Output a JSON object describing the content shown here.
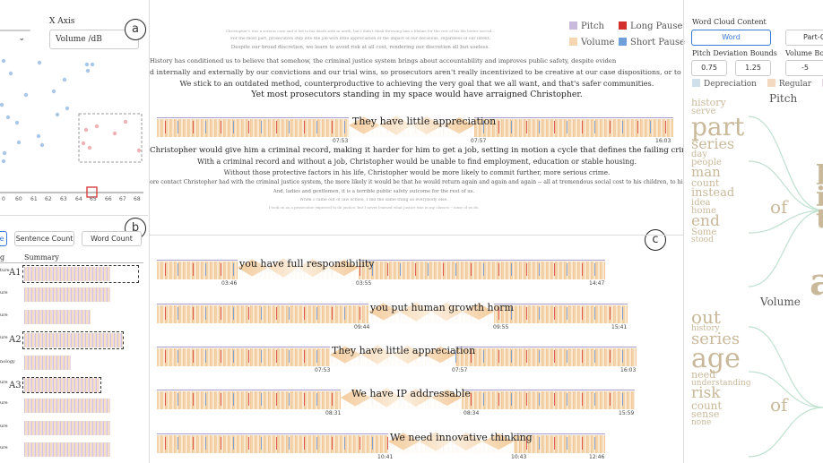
{
  "left_top": {
    "x_axis_label": "X Axis",
    "x_axis_value": "Volume /dB",
    "panel_marker": "a",
    "x_ticks": [
      "0",
      "60",
      "61",
      "62",
      "63",
      "64",
      "65",
      "66",
      "67",
      "68"
    ]
  },
  "left_bottom": {
    "panel_marker": "b",
    "buttons": [
      "e",
      "Sentence Count",
      "Word Count"
    ],
    "col1": "g",
    "col2": "Summary",
    "row_labels": [
      "ture",
      "ure",
      "ure",
      "ure",
      "nology",
      "ure",
      "ure",
      "ure",
      "ure"
    ],
    "annotations": [
      "A1",
      "A2",
      "A3"
    ]
  },
  "center": {
    "panel_marker": "c",
    "legend": [
      {
        "label": "Pitch",
        "color": "#c9b9dc"
      },
      {
        "label": "Long Pause",
        "color": "#d32f2f"
      },
      {
        "label": "Volume",
        "color": "#f5d6b0"
      },
      {
        "label": "Short Pause",
        "color": "#6e9fd8"
      }
    ],
    "transcript_faint": [
      "Christopher's was a serious case and it led to his death with in north, but I didn't think throwing him a lifeline for the rest of his life better served...",
      "For the most part, prosecutors step into the job with little appreciation of the impact of our decisions, regardless of our intent.",
      "Despite our broad discretion, we learn to avoid risk at all cost, rendering our discretion all but useless."
    ],
    "transcript_top": [
      "History has conditioned us to believe that somehow, the criminal justice system brings about accountability and improves public safety, despite evidence to the contrary.",
      "d internally and externally by our convictions and our trial wins, so prosecutors aren't really incentivized to be creative at our case dispositions, or to take risks on people we might not oth",
      "We stick to an outdated method, counterproductive to achieving the very goal that we all want, and that's safer communities."
    ],
    "transcript_emph": "Yet most prosecutors standing in my space would have arraigned Christopher.",
    "timeline_main": {
      "phrase": "They have little appreciation",
      "t_start": "07:53",
      "t_mid": "07:57",
      "t_end": "16:03"
    },
    "transcript_bottom": [
      "Christopher would give him a criminal record, making it harder for him to get a job, setting in motion a cycle that defines the failing criminal justice syste",
      "With a criminal record and without a job, Christopher would be unable to find employment, education or stable housing.",
      "Without those protective factors in his life, Christopher would be more likely to commit further, more serious crime."
    ],
    "transcript_small": [
      "ore contact Christopher had with the criminal justice system, the more likely it would be that he would return again and again and again -- all at tremendous social cost to his children, to his family and to his peo",
      "And, ladies and gentlemen, it is a terrible public safety outcome for the rest of us.",
      "When I came out of law school, I did the same thing as everybody else.",
      "I took on as a prosecutor expected to do justice, but I never learned what justice was in my classes -- none of us do."
    ],
    "timelines": [
      {
        "phrase": "you have full responsibility",
        "t_start": "03:46",
        "t_mid": "03:55",
        "t_end": "14:47"
      },
      {
        "phrase": "you put human growth horm",
        "t_start": "09:44",
        "t_mid": "09:55",
        "t_end": "15:41"
      },
      {
        "phrase": "They have little appreciation",
        "t_start": "07:53",
        "t_mid": "07:57",
        "t_end": "16:03"
      },
      {
        "phrase": "We have IP  addressable",
        "t_start": "08:31",
        "t_mid": "08:34",
        "t_end": "15:59"
      },
      {
        "phrase": "We need  innovative thinking",
        "t_start": "10:41",
        "t_mid": "10:43",
        "t_end": "12:46"
      }
    ]
  },
  "right": {
    "wc_title": "Word Cloud Content",
    "buttons": [
      "Word",
      "Part-Of"
    ],
    "pitch_bounds_label": "Pitch Deviation Bounds",
    "pitch_bounds": [
      "0.75",
      "1.25"
    ],
    "volume_bounds_label": "Volume Bou",
    "volume_bound": "-5",
    "legend": [
      {
        "label": "Depreciation",
        "color": "#cfe0ea"
      },
      {
        "label": "Regular",
        "color": "#f2d9bf"
      }
    ],
    "pitch_title": "Pitch",
    "volume_title": "Volume",
    "cloud_words_top": [
      "history",
      "serve",
      "part",
      "series",
      "day",
      "people",
      "man",
      "count",
      "instead",
      "idea",
      "home",
      "end",
      "Some",
      "stood"
    ],
    "cloud_words_bottom": [
      "out",
      "history",
      "series",
      "age",
      "need",
      "understanding",
      "risk",
      "count",
      "sense",
      "none"
    ],
    "conn_words": [
      "of",
      "of"
    ]
  }
}
